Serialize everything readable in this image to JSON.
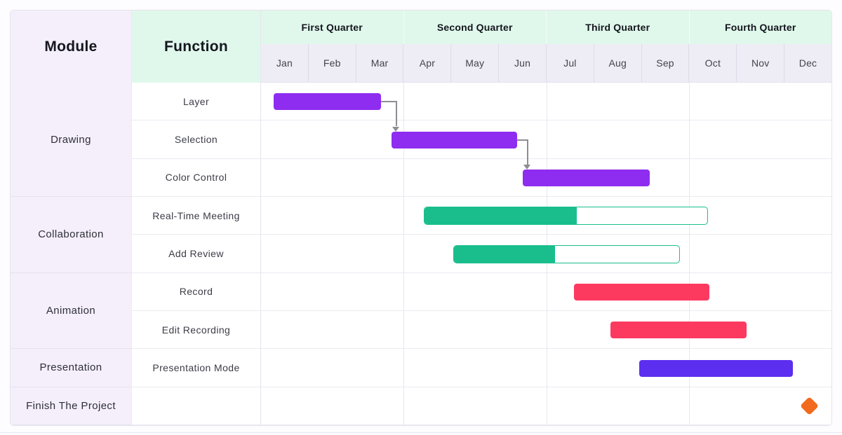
{
  "header": {
    "module_label": "Module",
    "function_label": "Function",
    "quarters": [
      "First Quarter",
      "Second Quarter",
      "Third Quarter",
      "Fourth Quarter"
    ],
    "months": [
      "Jan",
      "Feb",
      "Mar",
      "Apr",
      "May",
      "Jun",
      "Jul",
      "Aug",
      "Sep",
      "Oct",
      "Nov",
      "Dec"
    ]
  },
  "theme": {
    "module_column_bg": "#f5effb",
    "quarter_header_bg": "#dff8eb",
    "month_row_bg": "#eeecf4",
    "grid_line": "#ebe9f1",
    "connector_color": "#8d8d93"
  },
  "chart_data": {
    "type": "gantt",
    "time_unit": "month",
    "time_range": [
      0,
      12
    ],
    "rows": 9,
    "groups": [
      {
        "module": "Drawing",
        "color": "#8e2df0",
        "tasks": [
          {
            "function": "Layer",
            "start_month": 0.27,
            "end_month": 2.53
          },
          {
            "function": "Selection",
            "start_month": 2.75,
            "end_month": 5.39
          },
          {
            "function": "Color Control",
            "start_month": 5.51,
            "end_month": 8.17
          }
        ]
      },
      {
        "module": "Collaboration",
        "color": "#1abe8c",
        "tasks": [
          {
            "function": "Real-Time Meeting",
            "start_month": 3.42,
            "end_month": 9.4,
            "progress": 0.54
          },
          {
            "function": "Add Review",
            "start_month": 4.04,
            "end_month": 8.81,
            "progress": 0.45
          }
        ]
      },
      {
        "module": "Animation",
        "color": "#fc3a60",
        "tasks": [
          {
            "function": "Record",
            "start_month": 6.58,
            "end_month": 9.43
          },
          {
            "function": "Edit Recording",
            "start_month": 7.35,
            "end_month": 10.21
          }
        ]
      },
      {
        "module": "Presentation",
        "color": "#5b2ef0",
        "tasks": [
          {
            "function": "Presentation Mode",
            "start_month": 7.95,
            "end_month": 11.19
          }
        ]
      },
      {
        "module": "Finish The Project",
        "color": "#f26a1e",
        "tasks": [
          {
            "function": "",
            "milestone": true,
            "at_month": 11.53
          }
        ]
      }
    ],
    "connectors": [
      {
        "from_task": "Layer",
        "to_task": "Selection"
      },
      {
        "from_task": "Selection",
        "to_task": "Color Control"
      }
    ]
  }
}
